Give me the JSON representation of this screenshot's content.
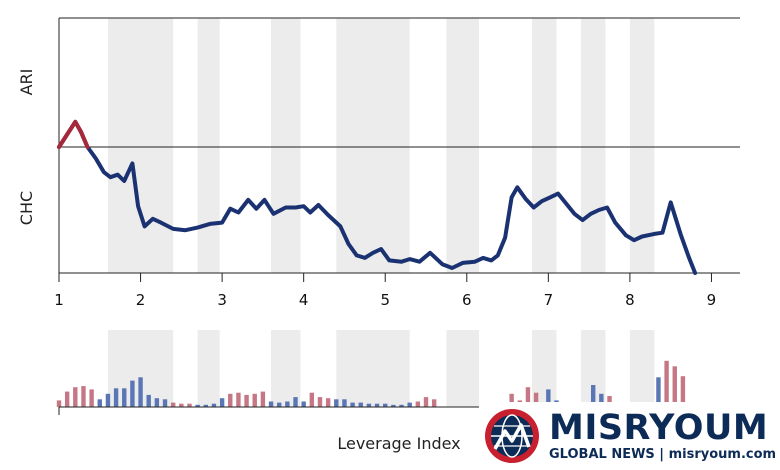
{
  "chart_data": {
    "type": "line",
    "xlabel": "Leverage Index",
    "y_upper_label": "ARI",
    "y_lower_label": "CHC",
    "xlim": [
      1,
      9.35
    ],
    "x_ticks": [
      {
        "value": 1,
        "label": "1"
      },
      {
        "value": 2,
        "label": "2"
      },
      {
        "value": 3,
        "label": "3"
      },
      {
        "value": 4,
        "label": "4"
      },
      {
        "value": 5,
        "label": "5"
      },
      {
        "value": 6,
        "label": "6"
      },
      {
        "value": 7,
        "label": "7"
      },
      {
        "value": 8,
        "label": "8"
      },
      {
        "value": 9,
        "label": "9"
      }
    ],
    "shaded_bands": [
      [
        1.6,
        2.4
      ],
      [
        2.7,
        2.97
      ],
      [
        3.6,
        3.96
      ],
      [
        4.4,
        5.3
      ],
      [
        5.75,
        6.15
      ],
      [
        6.8,
        7.1
      ],
      [
        7.4,
        7.7
      ],
      [
        8.0,
        8.3
      ]
    ],
    "main_series": [
      {
        "x": 1.0,
        "y": 0.0
      },
      {
        "x": 1.1,
        "y": 0.1
      },
      {
        "x": 1.2,
        "y": 0.2
      },
      {
        "x": 1.27,
        "y": 0.12
      },
      {
        "x": 1.35,
        "y": 0.0
      },
      {
        "x": 1.45,
        "y": -0.09
      },
      {
        "x": 1.55,
        "y": -0.2
      },
      {
        "x": 1.63,
        "y": -0.24
      },
      {
        "x": 1.72,
        "y": -0.22
      },
      {
        "x": 1.8,
        "y": -0.27
      },
      {
        "x": 1.9,
        "y": -0.13
      },
      {
        "x": 1.97,
        "y": -0.47
      },
      {
        "x": 2.05,
        "y": -0.63
      },
      {
        "x": 2.15,
        "y": -0.57
      },
      {
        "x": 2.25,
        "y": -0.6
      },
      {
        "x": 2.4,
        "y": -0.65
      },
      {
        "x": 2.55,
        "y": -0.66
      },
      {
        "x": 2.7,
        "y": -0.64
      },
      {
        "x": 2.85,
        "y": -0.61
      },
      {
        "x": 3.0,
        "y": -0.6
      },
      {
        "x": 3.1,
        "y": -0.49
      },
      {
        "x": 3.2,
        "y": -0.52
      },
      {
        "x": 3.32,
        "y": -0.42
      },
      {
        "x": 3.42,
        "y": -0.49
      },
      {
        "x": 3.52,
        "y": -0.42
      },
      {
        "x": 3.63,
        "y": -0.53
      },
      {
        "x": 3.78,
        "y": -0.48
      },
      {
        "x": 3.9,
        "y": -0.48
      },
      {
        "x": 4.0,
        "y": -0.47
      },
      {
        "x": 4.08,
        "y": -0.52
      },
      {
        "x": 4.18,
        "y": -0.46
      },
      {
        "x": 4.3,
        "y": -0.54
      },
      {
        "x": 4.45,
        "y": -0.63
      },
      {
        "x": 4.55,
        "y": -0.77
      },
      {
        "x": 4.65,
        "y": -0.86
      },
      {
        "x": 4.75,
        "y": -0.88
      },
      {
        "x": 4.85,
        "y": -0.84
      },
      {
        "x": 4.95,
        "y": -0.81
      },
      {
        "x": 5.05,
        "y": -0.9
      },
      {
        "x": 5.2,
        "y": -0.91
      },
      {
        "x": 5.3,
        "y": -0.89
      },
      {
        "x": 5.42,
        "y": -0.91
      },
      {
        "x": 5.55,
        "y": -0.84
      },
      {
        "x": 5.7,
        "y": -0.93
      },
      {
        "x": 5.82,
        "y": -0.96
      },
      {
        "x": 5.95,
        "y": -0.92
      },
      {
        "x": 6.1,
        "y": -0.91
      },
      {
        "x": 6.2,
        "y": -0.88
      },
      {
        "x": 6.3,
        "y": -0.9
      },
      {
        "x": 6.38,
        "y": -0.86
      },
      {
        "x": 6.47,
        "y": -0.72
      },
      {
        "x": 6.55,
        "y": -0.4
      },
      {
        "x": 6.62,
        "y": -0.32
      },
      {
        "x": 6.72,
        "y": -0.41
      },
      {
        "x": 6.82,
        "y": -0.48
      },
      {
        "x": 6.92,
        "y": -0.43
      },
      {
        "x": 7.02,
        "y": -0.4
      },
      {
        "x": 7.12,
        "y": -0.37
      },
      {
        "x": 7.22,
        "y": -0.45
      },
      {
        "x": 7.32,
        "y": -0.53
      },
      {
        "x": 7.42,
        "y": -0.58
      },
      {
        "x": 7.52,
        "y": -0.53
      },
      {
        "x": 7.62,
        "y": -0.5
      },
      {
        "x": 7.72,
        "y": -0.48
      },
      {
        "x": 7.82,
        "y": -0.6
      },
      {
        "x": 7.95,
        "y": -0.7
      },
      {
        "x": 8.05,
        "y": -0.74
      },
      {
        "x": 8.15,
        "y": -0.71
      },
      {
        "x": 8.3,
        "y": -0.69
      },
      {
        "x": 8.4,
        "y": -0.68
      },
      {
        "x": 8.5,
        "y": -0.44
      },
      {
        "x": 8.62,
        "y": -0.69
      },
      {
        "x": 8.72,
        "y": -0.87
      },
      {
        "x": 8.8,
        "y": -1.0
      }
    ],
    "highlight_series": [
      {
        "x": 1.0,
        "y": 0.0
      },
      {
        "x": 1.1,
        "y": 0.1
      },
      {
        "x": 1.2,
        "y": 0.2
      },
      {
        "x": 1.27,
        "y": 0.12
      },
      {
        "x": 1.35,
        "y": 0.0
      }
    ],
    "bar_series": [
      {
        "x": 1.0,
        "v": 6,
        "c": "r"
      },
      {
        "x": 1.1,
        "v": 14,
        "c": "r"
      },
      {
        "x": 1.2,
        "v": 18,
        "c": "r"
      },
      {
        "x": 1.3,
        "v": 19,
        "c": "r"
      },
      {
        "x": 1.4,
        "v": 16,
        "c": "r"
      },
      {
        "x": 1.5,
        "v": 7,
        "c": "b"
      },
      {
        "x": 1.6,
        "v": 12,
        "c": "b"
      },
      {
        "x": 1.7,
        "v": 17,
        "c": "b"
      },
      {
        "x": 1.8,
        "v": 17,
        "c": "b"
      },
      {
        "x": 1.9,
        "v": 24,
        "c": "b"
      },
      {
        "x": 2.0,
        "v": 27,
        "c": "b"
      },
      {
        "x": 2.1,
        "v": 11,
        "c": "b"
      },
      {
        "x": 2.2,
        "v": 8,
        "c": "b"
      },
      {
        "x": 2.3,
        "v": 7,
        "c": "b"
      },
      {
        "x": 2.4,
        "v": 4,
        "c": "r"
      },
      {
        "x": 2.5,
        "v": 3,
        "c": "r"
      },
      {
        "x": 2.6,
        "v": 3,
        "c": "r"
      },
      {
        "x": 2.7,
        "v": 2,
        "c": "b"
      },
      {
        "x": 2.8,
        "v": 2,
        "c": "b"
      },
      {
        "x": 2.9,
        "v": 3,
        "c": "b"
      },
      {
        "x": 3.0,
        "v": 8,
        "c": "b"
      },
      {
        "x": 3.1,
        "v": 12,
        "c": "r"
      },
      {
        "x": 3.2,
        "v": 13,
        "c": "r"
      },
      {
        "x": 3.3,
        "v": 11,
        "c": "r"
      },
      {
        "x": 3.4,
        "v": 12,
        "c": "r"
      },
      {
        "x": 3.5,
        "v": 14,
        "c": "r"
      },
      {
        "x": 3.6,
        "v": 5,
        "c": "b"
      },
      {
        "x": 3.7,
        "v": 4,
        "c": "b"
      },
      {
        "x": 3.8,
        "v": 5,
        "c": "b"
      },
      {
        "x": 3.9,
        "v": 9,
        "c": "b"
      },
      {
        "x": 4.0,
        "v": 5,
        "c": "b"
      },
      {
        "x": 4.1,
        "v": 13,
        "c": "r"
      },
      {
        "x": 4.2,
        "v": 9,
        "c": "r"
      },
      {
        "x": 4.3,
        "v": 8,
        "c": "r"
      },
      {
        "x": 4.4,
        "v": 7,
        "c": "b"
      },
      {
        "x": 4.5,
        "v": 7,
        "c": "b"
      },
      {
        "x": 4.6,
        "v": 4,
        "c": "b"
      },
      {
        "x": 4.7,
        "v": 4,
        "c": "b"
      },
      {
        "x": 4.8,
        "v": 3,
        "c": "b"
      },
      {
        "x": 4.9,
        "v": 3,
        "c": "b"
      },
      {
        "x": 5.0,
        "v": 3,
        "c": "b"
      },
      {
        "x": 5.1,
        "v": 2,
        "c": "b"
      },
      {
        "x": 5.2,
        "v": 2,
        "c": "b"
      },
      {
        "x": 5.3,
        "v": 4,
        "c": "b"
      },
      {
        "x": 5.4,
        "v": 5,
        "c": "r"
      },
      {
        "x": 5.5,
        "v": 9,
        "c": "r"
      },
      {
        "x": 5.6,
        "v": 7,
        "c": "r"
      },
      {
        "x": 6.55,
        "v": 12,
        "c": "r"
      },
      {
        "x": 6.65,
        "v": 6,
        "c": "r"
      },
      {
        "x": 6.75,
        "v": 18,
        "c": "r"
      },
      {
        "x": 6.85,
        "v": 13,
        "c": "r"
      },
      {
        "x": 7.0,
        "v": 16,
        "c": "b"
      },
      {
        "x": 7.1,
        "v": 6,
        "c": "b"
      },
      {
        "x": 7.55,
        "v": 20,
        "c": "b"
      },
      {
        "x": 7.65,
        "v": 12,
        "c": "b"
      },
      {
        "x": 7.75,
        "v": 10,
        "c": "r"
      },
      {
        "x": 8.35,
        "v": 27,
        "c": "b"
      },
      {
        "x": 8.45,
        "v": 42,
        "c": "r"
      },
      {
        "x": 8.55,
        "v": 37,
        "c": "r"
      },
      {
        "x": 8.65,
        "v": 28,
        "c": "r"
      }
    ],
    "colors": {
      "line": "#1b3272",
      "highlight": "#a8283a",
      "bar_red": "#c67785",
      "bar_blue": "#5a76b4",
      "band": "#ececec"
    }
  },
  "logo": {
    "brand": "MISRYOUM",
    "tagline": "GLOBAL NEWS | misryoum.com",
    "colors": {
      "navy": "#0d2b57",
      "red": "#c8202f"
    }
  }
}
